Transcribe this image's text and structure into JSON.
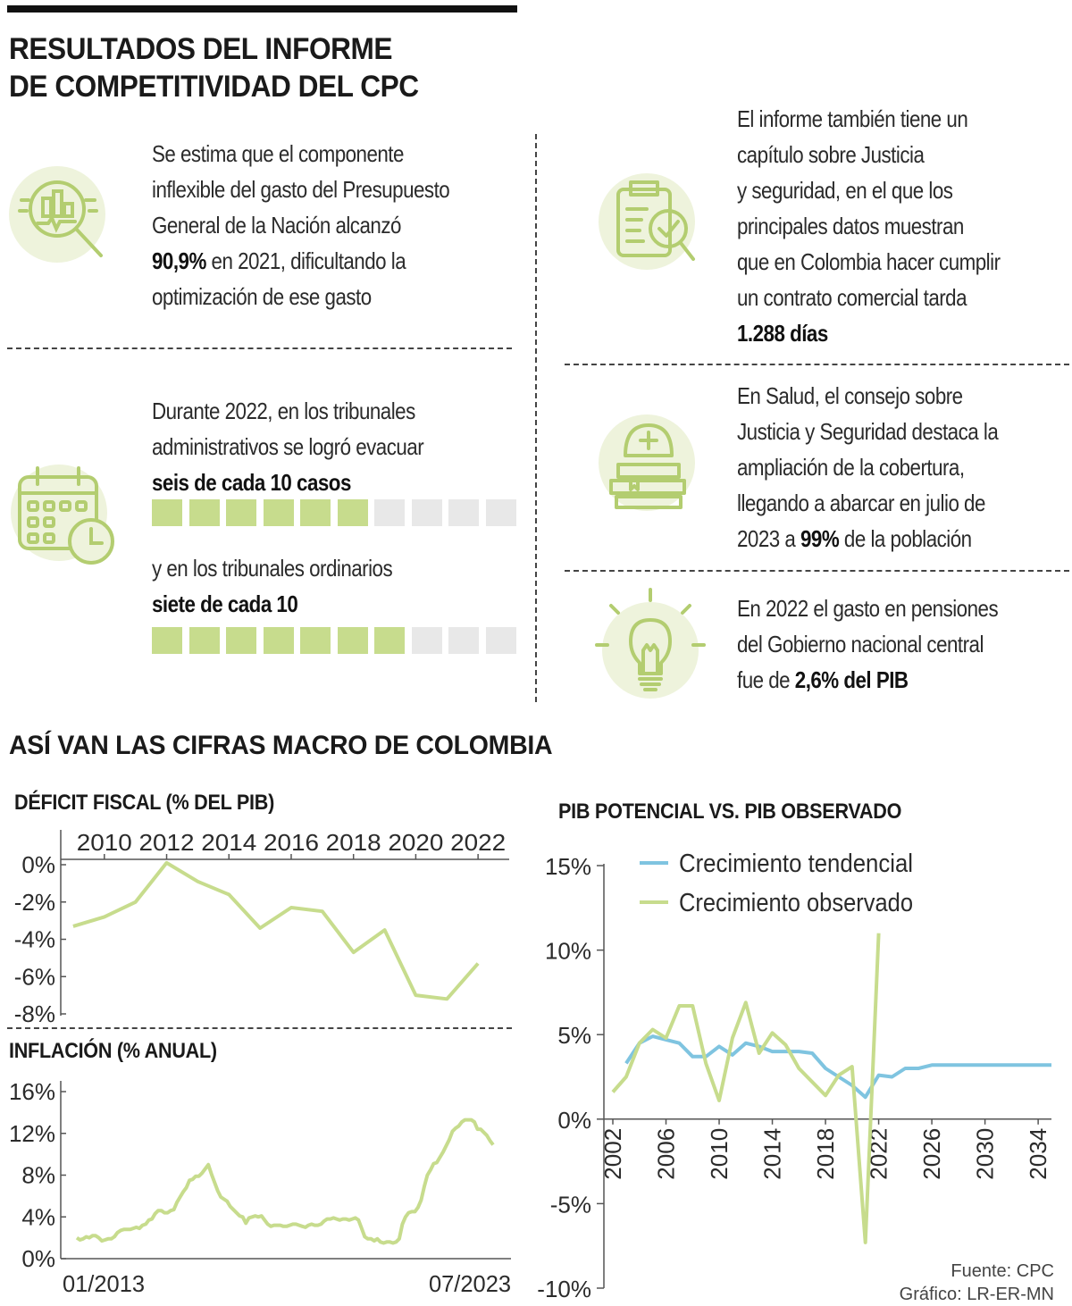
{
  "header": {
    "title_line1": "RESULTADOS DEL INFORME",
    "title_line2": "DE COMPETITIVIDAD DEL CPC"
  },
  "colors": {
    "accent_green": "#c7dc8d",
    "icon_bg": "#eef3dc",
    "icon_stroke": "#b3cd70",
    "empty_square": "#e8e8e8",
    "line_blue": "#7fc4e0"
  },
  "items": {
    "gasto": {
      "icon": "magnifier-chart-icon",
      "lines": [
        "Se estima que el componente",
        "inflexible del gasto del Presupuesto",
        "General de la Nación alcanzó"
      ],
      "bold": "90,9%",
      "rest": " en 2021, dificultando la",
      "last": "optimización de ese gasto"
    },
    "tribunales": {
      "icon": "calendar-clock-icon",
      "lines": [
        "Durante 2022, en los tribunales",
        "administrativos se logró evacuar"
      ],
      "bold1": "seis de cada 10 casos",
      "filled1": 6,
      "total1": 10,
      "line3": "y en los tribunales ordinarios",
      "bold2": "siete de cada 10",
      "filled2": 7,
      "total2": 10
    },
    "justicia": {
      "icon": "document-check-icon",
      "lines": [
        "El informe también tiene un",
        "capítulo sobre Justicia",
        "y seguridad, en el que los",
        "principales datos muestran",
        "que en Colombia hacer cumplir",
        "un contrato comercial tarda"
      ],
      "bold": "1.288 días"
    },
    "salud": {
      "icon": "nurse-cap-books-icon",
      "lines": [
        "En Salud, el consejo sobre",
        "Justicia y Seguridad destaca la",
        "ampliación de la cobertura,",
        "llegando a abarcar en julio de"
      ],
      "pre": "2023 a ",
      "bold": "99%",
      "rest": " de la población"
    },
    "pensiones": {
      "icon": "light-bulb-icon",
      "lines": [
        "En 2022 el gasto en pensiones",
        "del Gobierno nacional central"
      ],
      "pre": "fue de ",
      "bold": "2,6% del PIB"
    }
  },
  "macro_title": "ASÍ VAN LAS CIFRAS MACRO DE COLOMBIA",
  "source": {
    "line1": "Fuente: CPC",
    "line2": "Gráfico: LR-ER-MN"
  },
  "chart_data": [
    {
      "type": "line",
      "title": "DÉFICIT FISCAL (% DEL PIB)",
      "x_ticks": [
        "2010",
        "2012",
        "2014",
        "2016",
        "2018",
        "2020",
        "2022"
      ],
      "y_ticks": [
        "0%",
        "-2%",
        "-4%",
        "-6%",
        "-8%"
      ],
      "ylim": [
        -8,
        0
      ],
      "x": [
        2009,
        2010,
        2011,
        2012,
        2013,
        2014,
        2015,
        2016,
        2017,
        2018,
        2019,
        2020,
        2021,
        2022
      ],
      "values": [
        -3.3,
        -2.8,
        -2.0,
        0.1,
        -0.9,
        -1.6,
        -3.4,
        -2.3,
        -2.5,
        -4.7,
        -3.5,
        -7.0,
        -7.2,
        -5.3
      ],
      "color": "#c7dc8d"
    },
    {
      "type": "line",
      "title": "INFLACIÓN (% ANUAL)",
      "x_ticks": [
        "01/2013",
        "07/2023"
      ],
      "y_ticks": [
        "16%",
        "12%",
        "8%",
        "4%",
        "0%"
      ],
      "ylim": [
        0,
        16
      ],
      "x_start": "01/2013",
      "x_end": "07/2023",
      "values": [
        2.0,
        1.8,
        1.9,
        2.1,
        2.0,
        2.2,
        2.2,
        2.0,
        1.7,
        1.8,
        1.9,
        1.9,
        2.1,
        2.5,
        2.7,
        2.8,
        2.8,
        2.8,
        2.9,
        3.0,
        2.9,
        3.2,
        3.3,
        3.7,
        3.8,
        4.3,
        4.6,
        4.6,
        4.4,
        4.4,
        4.6,
        4.7,
        5.4,
        5.9,
        6.4,
        6.8,
        7.5,
        7.6,
        7.9,
        7.9,
        8.2,
        8.6,
        9.0,
        8.1,
        7.3,
        6.5,
        5.9,
        5.7,
        5.5,
        5.0,
        4.7,
        4.4,
        4.1,
        4.0,
        3.4,
        3.9,
        4.0,
        4.1,
        4.0,
        4.1,
        3.7,
        3.3,
        3.1,
        3.2,
        3.2,
        3.2,
        3.1,
        3.1,
        3.2,
        3.3,
        3.3,
        3.2,
        3.1,
        3.0,
        3.2,
        3.3,
        3.2,
        3.2,
        3.3,
        3.6,
        3.8,
        3.8,
        3.9,
        3.8,
        3.7,
        3.8,
        3.8,
        3.7,
        3.8,
        3.9,
        3.7,
        2.9,
        2.1,
        1.9,
        1.9,
        1.7,
        1.9,
        1.6,
        1.5,
        1.6,
        1.6,
        1.5,
        1.6,
        1.9,
        3.3,
        4.0,
        4.4,
        4.5,
        4.5,
        4.9,
        5.6,
        6.9,
        8.0,
        8.5,
        9.1,
        9.2,
        9.7,
        10.2,
        10.8,
        11.4,
        12.2,
        12.5,
        12.7,
        13.1,
        13.3,
        13.3,
        13.3,
        13.1,
        12.4,
        12.4,
        12.1,
        11.8,
        11.3,
        10.9
      ]
    },
    {
      "type": "line",
      "title": "PIB POTENCIAL VS. PIB OBSERVADO",
      "x_ticks": [
        "2002",
        "2006",
        "2010",
        "2014",
        "2018",
        "2022",
        "2026",
        "2030",
        "2034"
      ],
      "y_ticks": [
        "15%",
        "10%",
        "5%",
        "0%",
        "-5%",
        "-10%"
      ],
      "ylim": [
        -10,
        15
      ],
      "series": [
        {
          "name": "Crecimiento tendencial",
          "color": "#7fc4e0",
          "x": [
            2003,
            2004,
            2005,
            2006,
            2007,
            2008,
            2009,
            2010,
            2011,
            2012,
            2013,
            2014,
            2015,
            2016,
            2017,
            2018,
            2019,
            2020,
            2021,
            2022,
            2023,
            2024,
            2025,
            2026,
            2027,
            2028,
            2029,
            2030,
            2031,
            2032,
            2033,
            2034,
            2035
          ],
          "values": [
            3.3,
            4.5,
            4.9,
            4.7,
            4.5,
            3.7,
            3.7,
            4.3,
            3.8,
            4.5,
            4.3,
            4.0,
            4.0,
            4.0,
            3.9,
            3.0,
            2.5,
            2.0,
            1.3,
            2.6,
            2.5,
            3.0,
            3.0,
            3.2,
            3.2,
            3.2,
            3.2,
            3.2,
            3.2,
            3.2,
            3.2,
            3.2,
            3.2
          ]
        },
        {
          "name": "Crecimiento observado",
          "color": "#c7dc8d",
          "x": [
            2002,
            2003,
            2004,
            2005,
            2006,
            2007,
            2008,
            2009,
            2010,
            2011,
            2012,
            2013,
            2014,
            2015,
            2016,
            2017,
            2018,
            2019,
            2020,
            2021,
            2022
          ],
          "values": [
            1.6,
            2.5,
            4.5,
            5.3,
            4.8,
            6.7,
            6.7,
            3.3,
            1.1,
            4.8,
            6.9,
            3.9,
            5.1,
            4.4,
            3.0,
            2.2,
            1.4,
            2.6,
            3.1,
            -7.3,
            11.0
          ]
        }
      ]
    }
  ]
}
